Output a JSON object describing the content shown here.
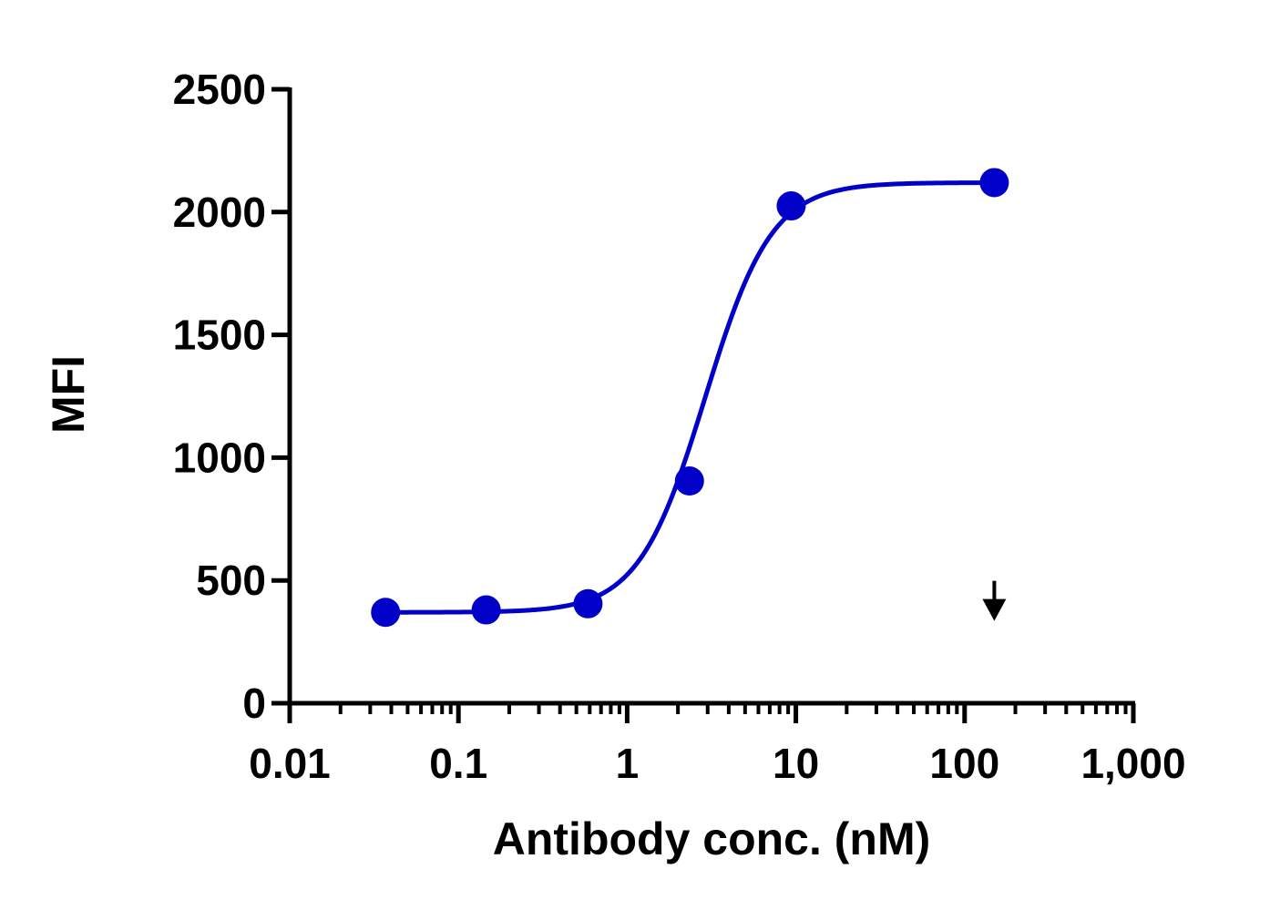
{
  "chart_data": {
    "type": "scatter",
    "title": "",
    "xlabel": "Antibody conc. (nM)",
    "ylabel": "MFI",
    "x_scale": "log",
    "xlim": [
      0.01,
      1000
    ],
    "ylim": [
      0,
      2500
    ],
    "x_ticks": [
      0.01,
      0.1,
      1,
      10,
      100,
      1000
    ],
    "x_tick_labels": [
      "0.01",
      "0.1",
      "1",
      "10",
      "100",
      "1,000"
    ],
    "y_ticks": [
      0,
      500,
      1000,
      1500,
      2000,
      2500
    ],
    "y_tick_labels": [
      "0",
      "500",
      "1000",
      "1500",
      "2000",
      "2500"
    ],
    "grid": false,
    "legend": "none",
    "series": [
      {
        "x": [
          0.037,
          0.146,
          0.586,
          2.34,
          9.38,
          150
        ],
        "y": [
          370,
          380,
          405,
          905,
          2025,
          2120
        ],
        "color": "#0000c8",
        "fit": "four-parameter logistic"
      }
    ],
    "annotations": [
      {
        "type": "arrow-down",
        "x": 150,
        "y": 350,
        "color": "#000000"
      }
    ]
  }
}
